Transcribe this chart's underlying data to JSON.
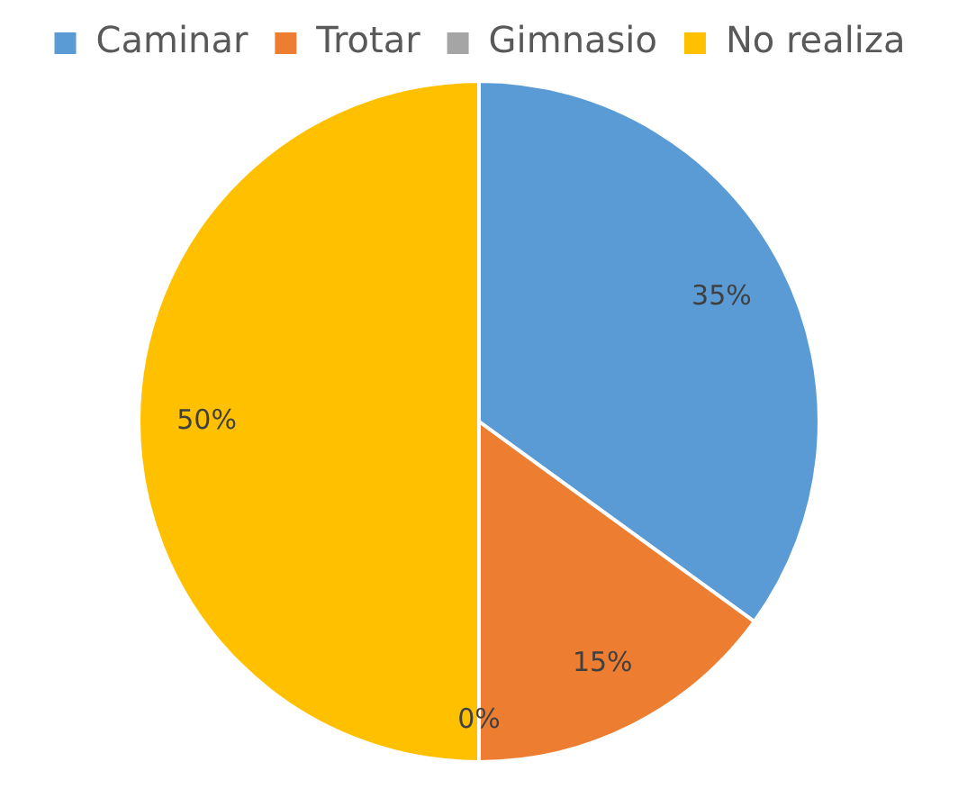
{
  "chart_data": {
    "type": "pie",
    "categories": [
      "Caminar",
      "Trotar",
      "Gimnasio",
      "No realiza"
    ],
    "values": [
      35,
      15,
      0,
      50
    ],
    "colors": [
      "#5b9bd5",
      "#ed7d31",
      "#a5a5a5",
      "#ffc000"
    ],
    "value_labels": [
      "35%",
      "15%",
      "0%",
      "50%"
    ],
    "legend": "top"
  }
}
